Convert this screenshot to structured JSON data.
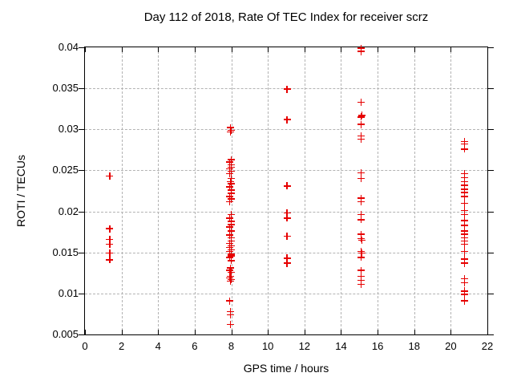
{
  "chart_data": {
    "type": "scatter",
    "title": "Day 112 of 2018, Rate Of TEC Index for receiver scrz",
    "xlabel": "GPS time / hours",
    "ylabel": "ROTI / TECUs",
    "xlim": [
      0,
      22
    ],
    "ylim": [
      0.005,
      0.04
    ],
    "grid": true,
    "legend": "none",
    "marker": "plus",
    "marker_color": "#e60000",
    "grid_color": "#b3b3b3",
    "axis_color": "#000000",
    "xticks": [
      {
        "v": 0,
        "label": "0"
      },
      {
        "v": 2,
        "label": "2"
      },
      {
        "v": 4,
        "label": "4"
      },
      {
        "v": 6,
        "label": "6"
      },
      {
        "v": 8,
        "label": "8"
      },
      {
        "v": 10,
        "label": "10"
      },
      {
        "v": 12,
        "label": "12"
      },
      {
        "v": 14,
        "label": "14"
      },
      {
        "v": 16,
        "label": "16"
      },
      {
        "v": 18,
        "label": "18"
      },
      {
        "v": 20,
        "label": "20"
      },
      {
        "v": 22,
        "label": "22"
      }
    ],
    "yticks": [
      {
        "v": 0.005,
        "label": "0.005"
      },
      {
        "v": 0.01,
        "label": "0.01"
      },
      {
        "v": 0.015,
        "label": "0.015"
      },
      {
        "v": 0.02,
        "label": "0.02"
      },
      {
        "v": 0.025,
        "label": "0.025"
      },
      {
        "v": 0.03,
        "label": "0.03"
      },
      {
        "v": 0.035,
        "label": "0.035"
      },
      {
        "v": 0.04,
        "label": "0.04"
      }
    ],
    "points": [
      [
        1.35,
        0.0243
      ],
      [
        1.35,
        0.0179
      ],
      [
        1.35,
        0.0166
      ],
      [
        1.35,
        0.016
      ],
      [
        1.35,
        0.0149
      ],
      [
        1.35,
        0.0141
      ],
      [
        7.95,
        0.0302
      ],
      [
        8.0,
        0.0299
      ],
      [
        7.95,
        0.0297
      ],
      [
        8.0,
        0.0263
      ],
      [
        7.9,
        0.026
      ],
      [
        8.0,
        0.0257
      ],
      [
        8.0,
        0.0254
      ],
      [
        7.9,
        0.0252
      ],
      [
        8.0,
        0.0249
      ],
      [
        7.9,
        0.0246
      ],
      [
        8.0,
        0.024
      ],
      [
        7.95,
        0.0236
      ],
      [
        8.0,
        0.0234
      ],
      [
        7.9,
        0.023
      ],
      [
        8.0,
        0.0226
      ],
      [
        8.0,
        0.0222
      ],
      [
        7.9,
        0.0218
      ],
      [
        8.0,
        0.0215
      ],
      [
        7.9,
        0.0212
      ],
      [
        8.0,
        0.0196
      ],
      [
        7.9,
        0.0192
      ],
      [
        8.0,
        0.0188
      ],
      [
        8.0,
        0.0184
      ],
      [
        7.9,
        0.0181
      ],
      [
        8.0,
        0.0176
      ],
      [
        7.9,
        0.0171
      ],
      [
        8.0,
        0.0168
      ],
      [
        8.0,
        0.0164
      ],
      [
        7.9,
        0.0161
      ],
      [
        8.0,
        0.0158
      ],
      [
        7.9,
        0.0156
      ],
      [
        8.0,
        0.0153
      ],
      [
        7.9,
        0.0151
      ],
      [
        8.0,
        0.0148
      ],
      [
        8.0,
        0.0146
      ],
      [
        7.9,
        0.0144
      ],
      [
        8.0,
        0.014
      ],
      [
        7.95,
        0.0131
      ],
      [
        7.9,
        0.0128
      ],
      [
        8.0,
        0.0126
      ],
      [
        7.95,
        0.0121
      ],
      [
        7.9,
        0.0119
      ],
      [
        8.0,
        0.0117
      ],
      [
        7.95,
        0.0115
      ],
      [
        7.9,
        0.0091
      ],
      [
        7.95,
        0.0078
      ],
      [
        7.95,
        0.0074
      ],
      [
        7.95,
        0.0062
      ],
      [
        11.05,
        0.0349
      ],
      [
        11.05,
        0.0312
      ],
      [
        11.05,
        0.0231
      ],
      [
        11.05,
        0.0198
      ],
      [
        11.05,
        0.0192
      ],
      [
        11.05,
        0.017
      ],
      [
        11.05,
        0.0143
      ],
      [
        11.05,
        0.0137
      ],
      [
        15.1,
        0.0399
      ],
      [
        15.1,
        0.0395
      ],
      [
        15.1,
        0.0333
      ],
      [
        15.15,
        0.0317
      ],
      [
        15.1,
        0.0315
      ],
      [
        15.1,
        0.0306
      ],
      [
        15.1,
        0.0292
      ],
      [
        15.1,
        0.0288
      ],
      [
        15.1,
        0.0247
      ],
      [
        15.1,
        0.024
      ],
      [
        15.1,
        0.0216
      ],
      [
        15.1,
        0.0212
      ],
      [
        15.1,
        0.0196
      ],
      [
        15.1,
        0.019
      ],
      [
        15.1,
        0.0172
      ],
      [
        15.1,
        0.0167
      ],
      [
        15.15,
        0.0165
      ],
      [
        15.1,
        0.0151
      ],
      [
        15.15,
        0.0149
      ],
      [
        15.1,
        0.0144
      ],
      [
        15.1,
        0.0128
      ],
      [
        15.1,
        0.0121
      ],
      [
        15.1,
        0.0116
      ],
      [
        15.1,
        0.0111
      ],
      [
        20.75,
        0.0285
      ],
      [
        20.75,
        0.0282
      ],
      [
        20.75,
        0.0276
      ],
      [
        20.75,
        0.0246
      ],
      [
        20.75,
        0.0241
      ],
      [
        20.75,
        0.0236
      ],
      [
        20.75,
        0.0232
      ],
      [
        20.75,
        0.0227
      ],
      [
        20.75,
        0.0223
      ],
      [
        20.75,
        0.0218
      ],
      [
        20.75,
        0.021
      ],
      [
        20.75,
        0.0201
      ],
      [
        20.75,
        0.0196
      ],
      [
        20.75,
        0.0189
      ],
      [
        20.75,
        0.0183
      ],
      [
        20.75,
        0.0176
      ],
      [
        20.75,
        0.0172
      ],
      [
        20.75,
        0.0168
      ],
      [
        20.75,
        0.0164
      ],
      [
        20.75,
        0.016
      ],
      [
        20.75,
        0.0151
      ],
      [
        20.75,
        0.0142
      ],
      [
        20.75,
        0.0137
      ],
      [
        20.75,
        0.0118
      ],
      [
        20.75,
        0.0113
      ],
      [
        20.75,
        0.0103
      ],
      [
        20.75,
        0.0099
      ],
      [
        20.75,
        0.0091
      ]
    ]
  }
}
